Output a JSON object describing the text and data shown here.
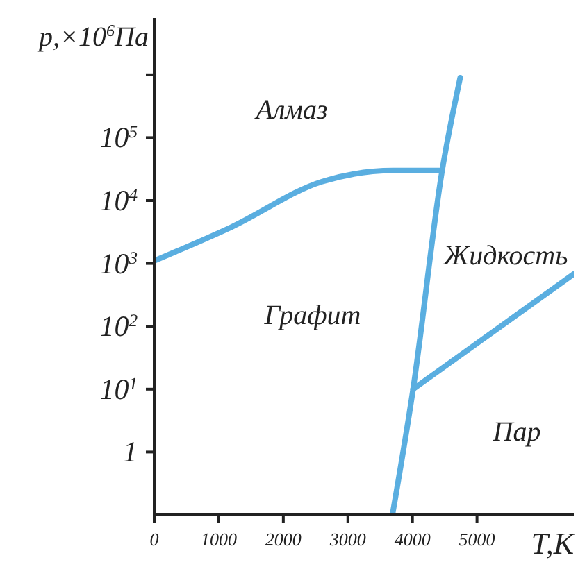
{
  "chart_data": {
    "type": "line",
    "xlabel": "T,K",
    "ylabel": "p,×10$^{6}$Па",
    "xlim": [
      0,
      6500
    ],
    "xticks": [
      0,
      1000,
      2000,
      3000,
      4000,
      5000
    ],
    "ylim": [
      0.1,
      8000000
    ],
    "log": "y",
    "yticks": [
      {
        "value": 1,
        "label": "1"
      },
      {
        "value": 10,
        "label": "10$^{1}$"
      },
      {
        "value": 100,
        "label": "10$^{2}$"
      },
      {
        "value": 1000,
        "label": "10$^{3}$"
      },
      {
        "value": 10000,
        "label": "10$^{4}$"
      },
      {
        "value": 100000,
        "label": "10$^{5}$"
      },
      {
        "value": 1000000,
        "label": null
      }
    ],
    "grid": false,
    "legend": false,
    "marker": "none",
    "line_style": "solid",
    "series": [
      {
        "color": "#5aaee0",
        "x": [
          0,
          1200,
          2600,
          3700,
          4460
        ],
        "values": [
          1100,
          3800,
          20000,
          30000,
          30000
        ]
      },
      {
        "color": "#5aaee0",
        "x": [
          3690,
          4010,
          4460,
          4740
        ],
        "values": [
          0.1,
          10,
          30000,
          900000
        ]
      },
      {
        "color": "#5aaee0",
        "x": [
          4010,
          6500
        ],
        "values": [
          10,
          680
        ]
      }
    ],
    "annotations": [
      "Алмаз",
      "Графит",
      "Жидкость",
      "Пар"
    ]
  }
}
